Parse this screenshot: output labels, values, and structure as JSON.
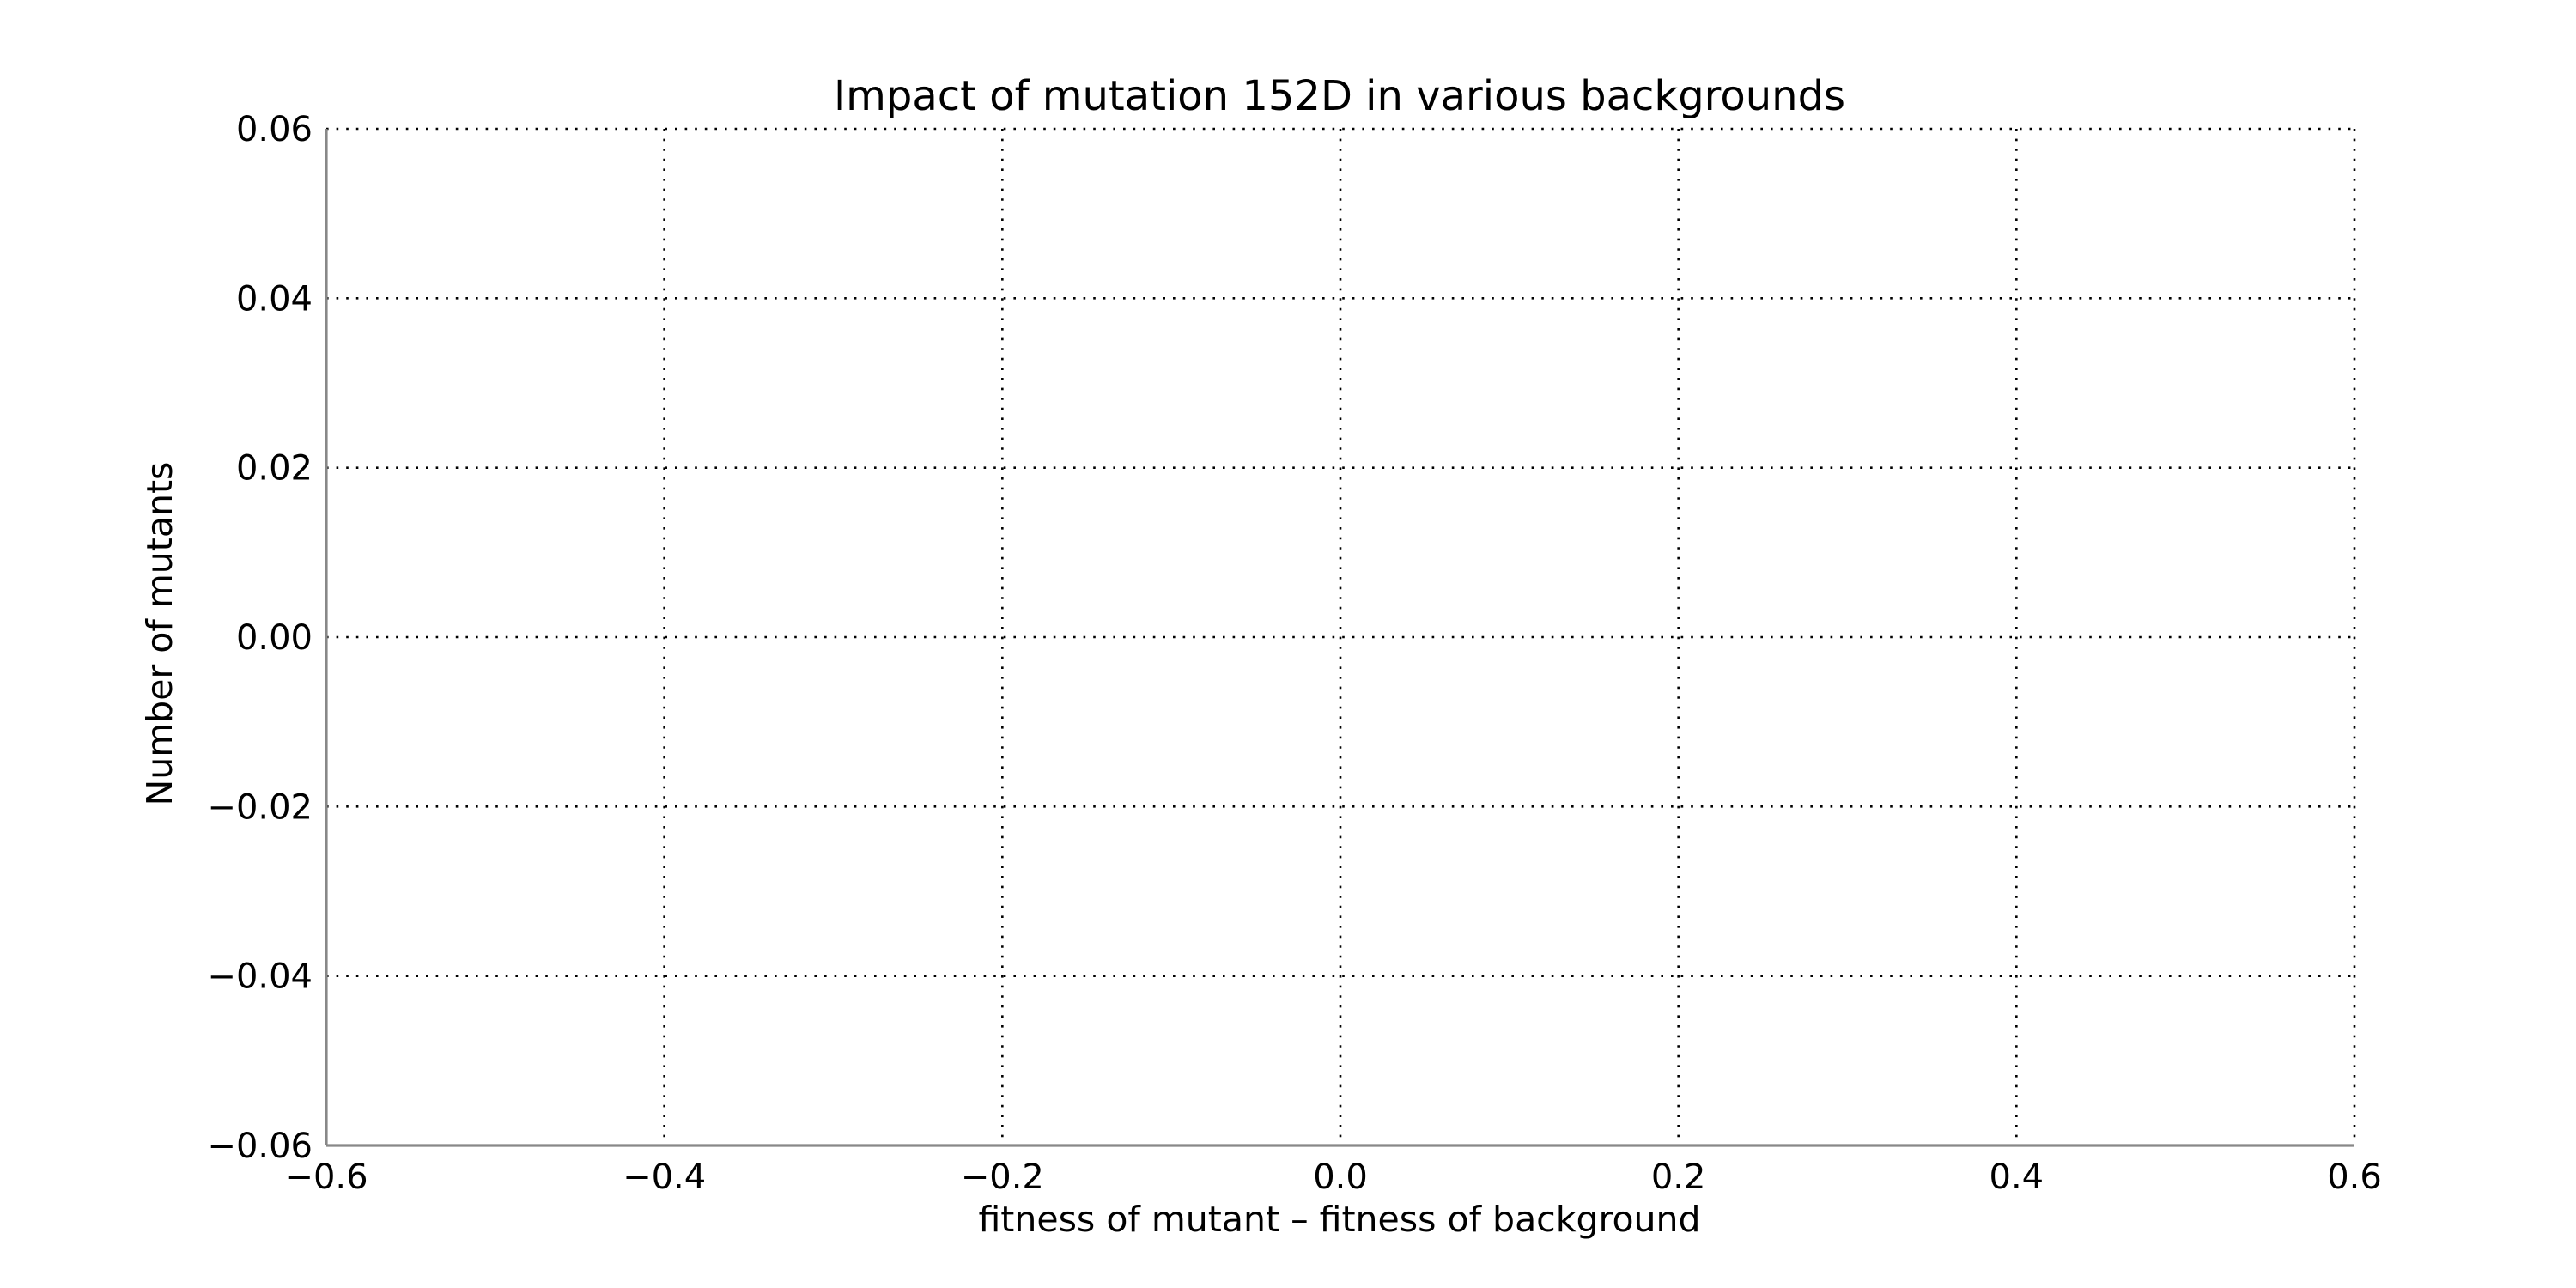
{
  "chart_data": {
    "type": "bar",
    "title": "Impact of mutation 152D in various backgrounds",
    "xlabel": "fitness of mutant  –  fitness of background",
    "ylabel": "Number of mutants",
    "xlim": [
      -0.6,
      0.6
    ],
    "ylim": [
      -0.06,
      0.06
    ],
    "x_ticks": [
      -0.6,
      -0.4,
      -0.2,
      0.0,
      0.2,
      0.4,
      0.6
    ],
    "x_tick_labels": [
      "−0.6",
      "−0.4",
      "−0.2",
      "0.0",
      "0.2",
      "0.4",
      "0.6"
    ],
    "y_ticks": [
      0.06,
      0.04,
      0.02,
      0.0,
      -0.02,
      -0.04,
      -0.06
    ],
    "y_tick_labels": [
      "0.06",
      "0.04",
      "0.02",
      "0.00",
      "−0.02",
      "−0.04",
      "−0.06"
    ],
    "grid": true,
    "series": [],
    "colors": {
      "grid": "#000000",
      "spine": "#888888",
      "text": "#000000",
      "background": "#ffffff"
    }
  }
}
